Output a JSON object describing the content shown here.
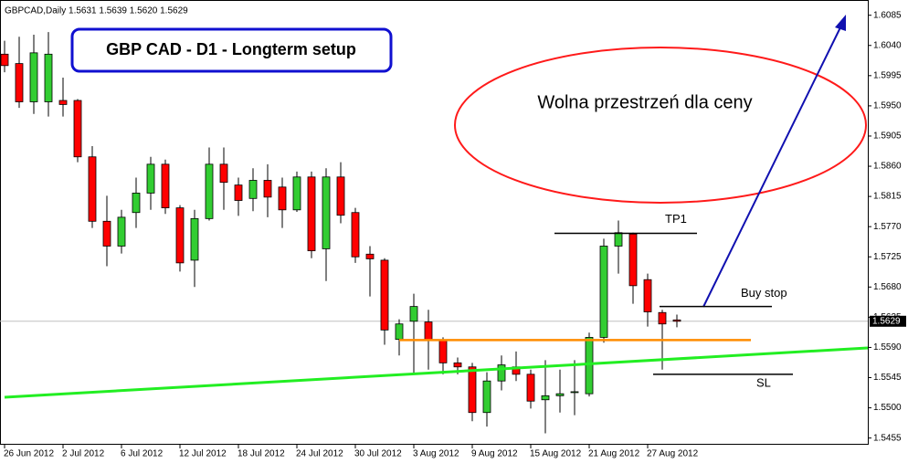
{
  "chart_data": {
    "type": "candlestick",
    "header": "GBPCAD,Daily  1.5631 1.5639 1.5620 1.5629",
    "title": "GBP CAD - D1 - Longterm setup",
    "annotation": "Wolna przestrzeń dla ceny",
    "categories": [
      "26 Jun 2012",
      null,
      null,
      null,
      "2 Jul 2012",
      null,
      null,
      null,
      "6 Jul 2012",
      null,
      null,
      null,
      "12 Jul 2012",
      null,
      null,
      null,
      "18 Jul 2012",
      null,
      null,
      null,
      "24 Jul 2012",
      null,
      null,
      null,
      "30 Jul 2012",
      null,
      null,
      null,
      "3 Aug 2012",
      null,
      null,
      null,
      "9 Aug 2012",
      null,
      null,
      null,
      "15 Aug 2012",
      null,
      null,
      null,
      "21 Aug 2012",
      null,
      null,
      null,
      "27 Aug 2012",
      null,
      null
    ],
    "open": [
      1.6027,
      1.6013,
      1.5956,
      1.5956,
      1.5958,
      1.5958,
      1.5874,
      1.5778,
      1.5741,
      1.5791,
      1.582,
      1.5863,
      1.5798,
      1.572,
      1.5782,
      1.5863,
      1.5832,
      1.5812,
      1.5839,
      1.5829,
      1.5795,
      1.5844,
      1.5737,
      1.5844,
      1.5791,
      1.5729,
      1.572,
      1.5602,
      1.5629,
      1.5628,
      1.5601,
      1.5567,
      1.5561,
      1.5493,
      1.554,
      1.5561,
      1.555,
      1.5512,
      1.5518,
      1.5524,
      1.5521,
      1.5605,
      1.5741,
      1.5759,
      1.5691,
      1.5642,
      1.5631
    ],
    "high": [
      1.6047,
      1.6053,
      1.6056,
      1.606,
      1.5992,
      1.596,
      1.589,
      1.5816,
      1.5795,
      1.5843,
      1.5874,
      1.587,
      1.5802,
      1.5795,
      1.5888,
      1.5888,
      1.5843,
      1.5857,
      1.5863,
      1.5843,
      1.5852,
      1.5852,
      1.5857,
      1.5866,
      1.5798,
      1.5741,
      1.5723,
      1.5632,
      1.567,
      1.5646,
      1.5605,
      1.5575,
      1.5567,
      1.5553,
      1.5578,
      1.5584,
      1.5557,
      1.5571,
      1.5557,
      1.5571,
      1.5612,
      1.5752,
      1.5779,
      1.5761,
      1.57,
      1.5646,
      1.5639
    ],
    "low": [
      1.6,
      1.5947,
      1.5938,
      1.5934,
      1.5934,
      1.5866,
      1.5768,
      1.5711,
      1.573,
      1.5768,
      1.5795,
      1.5789,
      1.5703,
      1.568,
      1.5779,
      1.5795,
      1.5786,
      1.5793,
      1.5784,
      1.5768,
      1.5792,
      1.5723,
      1.5689,
      1.5775,
      1.5716,
      1.5666,
      1.5594,
      1.5578,
      1.555,
      1.5557,
      1.555,
      1.555,
      1.548,
      1.5472,
      1.5526,
      1.554,
      1.5499,
      1.5462,
      1.5493,
      1.5489,
      1.5517,
      1.5597,
      1.57,
      1.5655,
      1.5621,
      1.5557,
      1.562
    ],
    "close": [
      1.601,
      1.5956,
      1.6029,
      1.6027,
      1.5952,
      1.5874,
      1.5778,
      1.5741,
      1.5784,
      1.582,
      1.5863,
      1.5798,
      1.5716,
      1.5782,
      1.5863,
      1.5836,
      1.5809,
      1.5839,
      1.5814,
      1.5795,
      1.5844,
      1.5734,
      1.5844,
      1.5787,
      1.5725,
      1.5722,
      1.5616,
      1.5625,
      1.5651,
      1.5601,
      1.5567,
      1.5561,
      1.5493,
      1.554,
      1.5564,
      1.555,
      1.551,
      1.5518,
      1.5521,
      1.5524,
      1.5605,
      1.5741,
      1.5761,
      1.5682,
      1.5643,
      1.5625,
      1.5629
    ],
    "up_color": "#32cd32",
    "down_color": "#ff0000",
    "ylim": [
      1.5445,
      1.6105
    ],
    "yticks": [
      1.6085,
      {
        "value": 1.604,
        "label": "1.6040"
      },
      1.5995,
      {
        "value": 1.595,
        "label": "1.5950"
      },
      1.5905,
      {
        "value": 1.586,
        "label": "1.5860"
      },
      1.5815,
      {
        "value": 1.577,
        "label": "1.5770"
      },
      1.5725,
      {
        "value": 1.568,
        "label": "1.5680"
      },
      1.5635,
      {
        "value": 1.559,
        "label": "1.5590"
      },
      1.5545,
      {
        "value": 1.55,
        "label": "1.5500"
      },
      1.5455
    ],
    "last_price": {
      "value": 1.5629,
      "label": "1.5629"
    },
    "levels": [
      {
        "value": 1.5601,
        "color": "#ff8c00"
      },
      {
        "label": "TP1",
        "value": 1.576,
        "color": "#000000"
      },
      {
        "label": "Buy stop",
        "value": 1.5651,
        "color": "#000000"
      },
      {
        "label": "SL",
        "value": 1.555,
        "color": "#000000"
      }
    ]
  }
}
